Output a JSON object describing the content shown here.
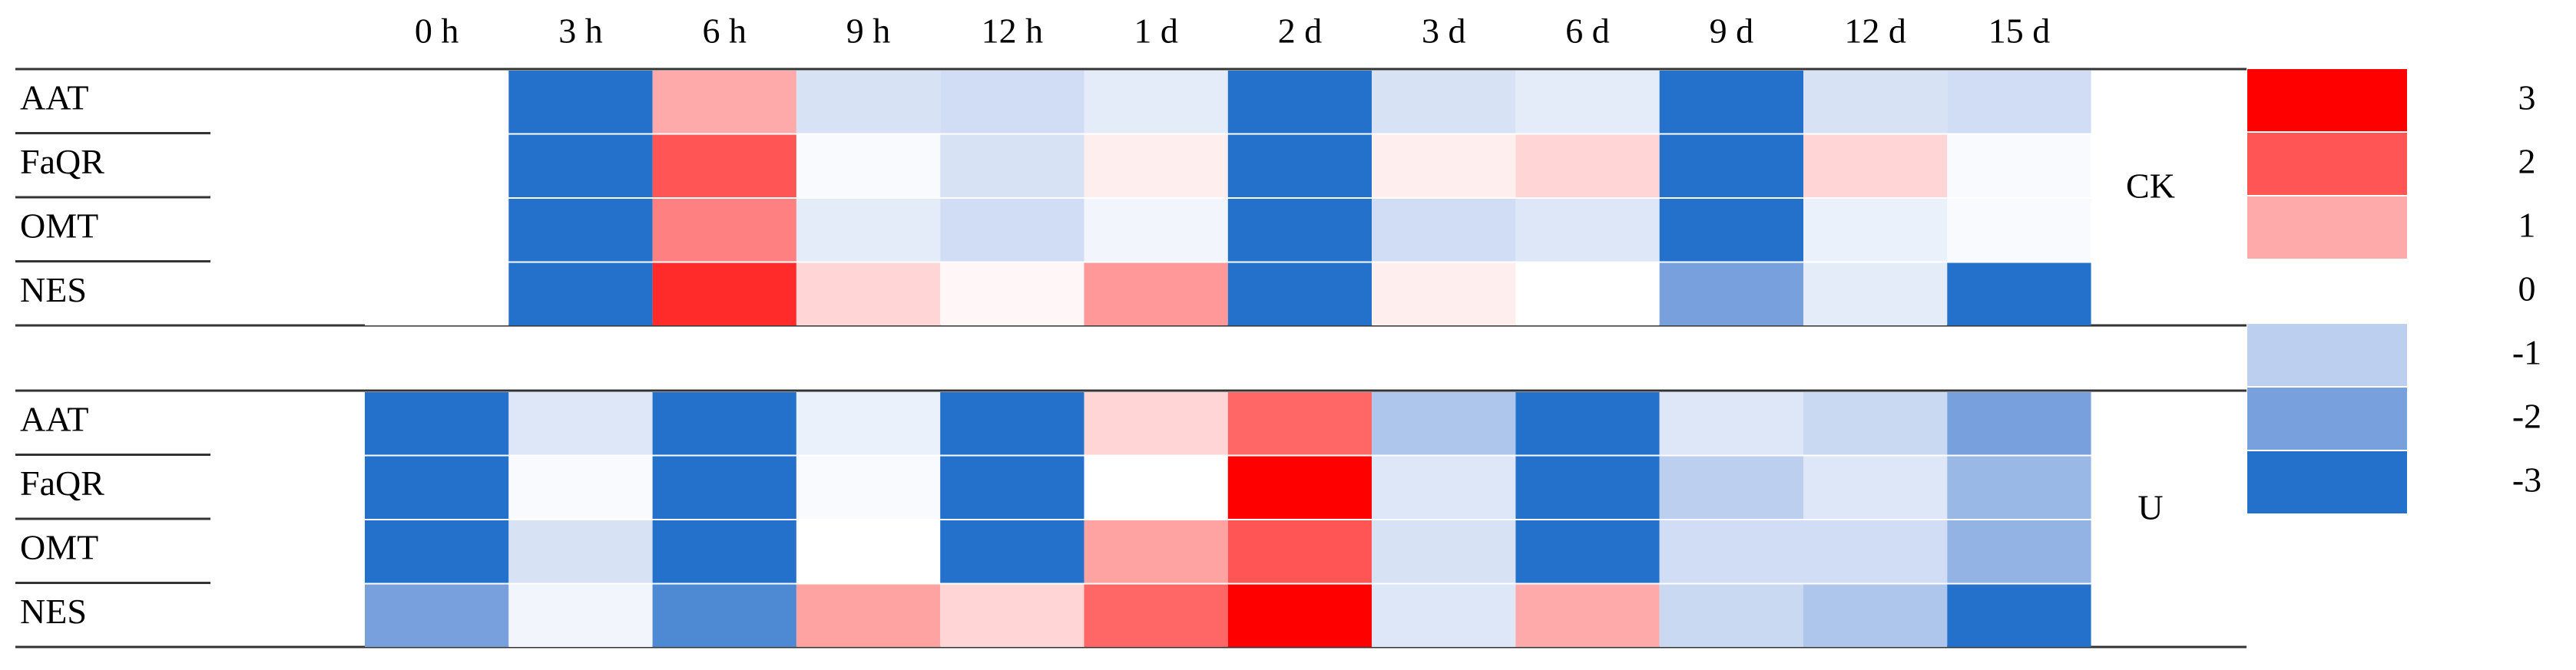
{
  "chart_data": {
    "type": "heatmap",
    "columns": [
      "0 h",
      "3 h",
      "6 h",
      "9 h",
      "12 h",
      "1 d",
      "2 d",
      "3 d",
      "6 d",
      "9 d",
      "12 d",
      "15 d"
    ],
    "groups": [
      {
        "label": "CK",
        "rows": [
          "AAT",
          "FaQR",
          "OMT",
          "NES"
        ],
        "values": [
          [
            0,
            -3,
            1,
            -0.6,
            -0.7,
            -0.4,
            -3,
            -0.6,
            -0.4,
            -3,
            -0.6,
            -0.7
          ],
          [
            0,
            -3,
            2,
            -0.1,
            -0.6,
            0.2,
            -3,
            0.2,
            0.5,
            -3,
            0.5,
            -0.1
          ],
          [
            0,
            -3,
            1.5,
            -0.4,
            -0.7,
            -0.2,
            -3,
            -0.7,
            -0.5,
            -3,
            -0.3,
            -0.1
          ],
          [
            0,
            -3,
            2.5,
            0.5,
            0.1,
            1.2,
            -3,
            0.2,
            0,
            -2,
            -0.4,
            -3
          ]
        ]
      },
      {
        "label": "U",
        "rows": [
          "AAT",
          "FaQR",
          "OMT",
          "NES"
        ],
        "values": [
          [
            -3,
            -0.5,
            -3,
            -0.3,
            -3,
            0.5,
            1.8,
            -1.2,
            -3,
            -0.5,
            -0.8,
            -2
          ],
          [
            -3,
            -0.1,
            -3,
            -0.1,
            -3,
            0,
            3,
            -0.5,
            -3,
            -1,
            -0.5,
            -1.5
          ],
          [
            -3,
            -0.6,
            -3,
            0,
            -3,
            1.1,
            2,
            -0.6,
            -3,
            -0.7,
            -0.7,
            -1.6
          ],
          [
            -2,
            -0.2,
            -2.5,
            1.1,
            0.5,
            1.8,
            3,
            -0.5,
            1,
            -0.8,
            -1.2,
            -3
          ]
        ]
      }
    ],
    "colorbar": {
      "ticks": [
        3,
        2,
        1,
        0,
        -1,
        -2,
        -3
      ],
      "colors": [
        "#ff0000",
        "#ff5555",
        "#ffaaaa",
        "#ffffff",
        "#bccfef",
        "#78a0dc",
        "#2471cc"
      ]
    }
  }
}
